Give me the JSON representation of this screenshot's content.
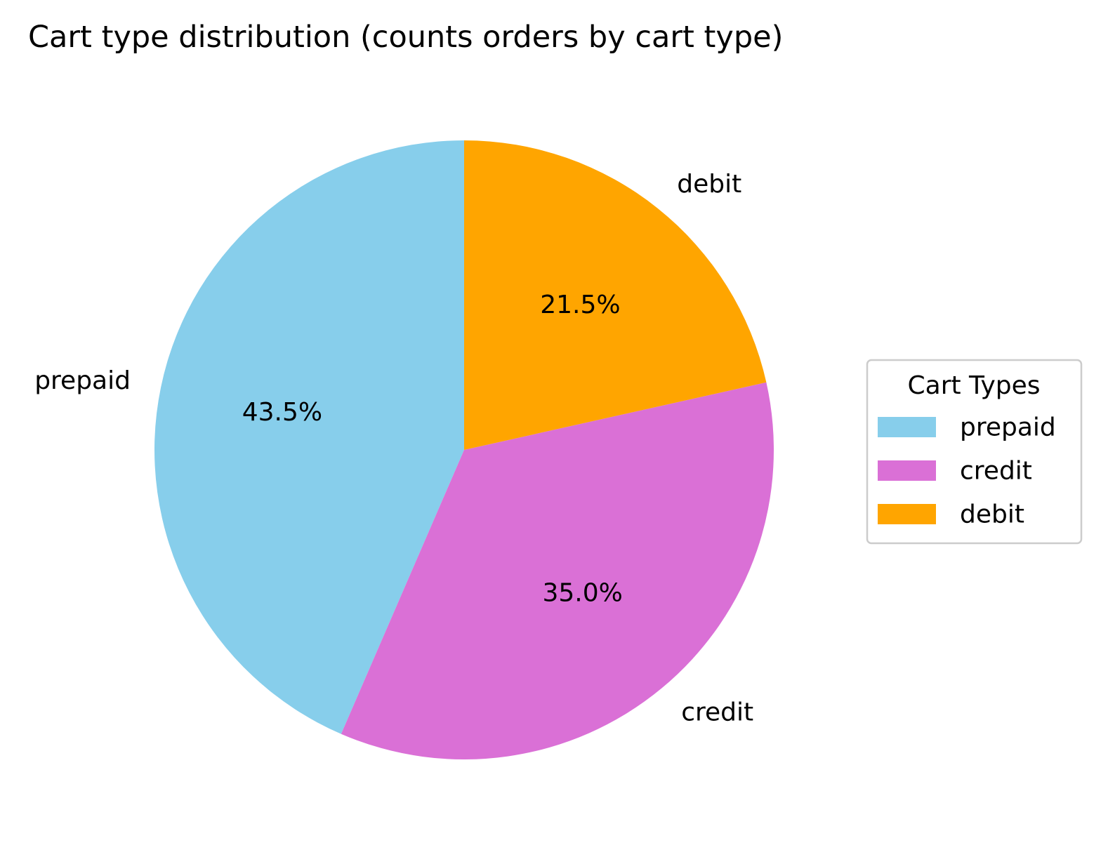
{
  "chart_data": {
    "type": "pie",
    "title": "Cart type distribution (counts orders by cart type)",
    "slices": [
      {
        "label": "prepaid",
        "percent": 43.5,
        "percent_label": "43.5%",
        "color": "#87CEEB"
      },
      {
        "label": "credit",
        "percent": 35.0,
        "percent_label": "35.0%",
        "color": "#DA70D6"
      },
      {
        "label": "debit",
        "percent": 21.5,
        "percent_label": "21.5%",
        "color": "#FFA500"
      }
    ],
    "start_angle_deg": 90,
    "direction": "counterclockwise",
    "legend": {
      "title": "Cart Types",
      "placement": "right",
      "entries": [
        "prepaid",
        "credit",
        "debit"
      ]
    }
  }
}
